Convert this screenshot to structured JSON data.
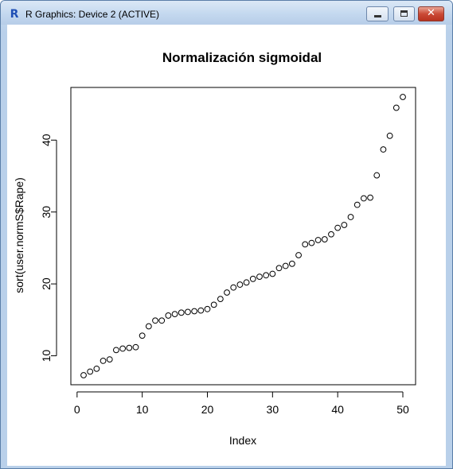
{
  "window": {
    "title": "R Graphics: Device 2 (ACTIVE)",
    "app_icon": "R-logo-icon",
    "controls": [
      "minimize-icon",
      "maximize-icon",
      "close-icon"
    ]
  },
  "chart_data": {
    "type": "scatter",
    "title": "Normalización sigmoidal",
    "xlabel": "Index",
    "ylabel": "sort(user.normS$Rape)",
    "xlim": [
      1,
      50
    ],
    "ylim": [
      7.3,
      46.0
    ],
    "x_ticks": [
      "0",
      "10",
      "20",
      "30",
      "40",
      "50"
    ],
    "y_ticks": [
      "10",
      "20",
      "30",
      "40"
    ],
    "grid": false,
    "marker": "open-circle",
    "x": [
      1,
      2,
      3,
      4,
      5,
      6,
      7,
      8,
      9,
      10,
      11,
      12,
      13,
      14,
      15,
      16,
      17,
      18,
      19,
      20,
      21,
      22,
      23,
      24,
      25,
      26,
      27,
      28,
      29,
      30,
      31,
      32,
      33,
      34,
      35,
      36,
      37,
      38,
      39,
      40,
      41,
      42,
      43,
      44,
      45,
      46,
      47,
      48,
      49,
      50
    ],
    "y": [
      7.3,
      7.8,
      8.2,
      9.3,
      9.5,
      10.8,
      11.0,
      11.1,
      11.2,
      12.8,
      14.1,
      14.9,
      14.9,
      15.6,
      15.8,
      16.0,
      16.1,
      16.2,
      16.3,
      16.5,
      17.1,
      17.9,
      18.8,
      19.5,
      19.9,
      20.2,
      20.7,
      21.0,
      21.2,
      21.4,
      22.2,
      22.5,
      22.8,
      24.0,
      25.5,
      25.7,
      26.1,
      26.2,
      26.9,
      27.8,
      28.2,
      29.3,
      31.0,
      31.9,
      32.0,
      35.1,
      38.7,
      40.6,
      44.5,
      46.0
    ]
  }
}
